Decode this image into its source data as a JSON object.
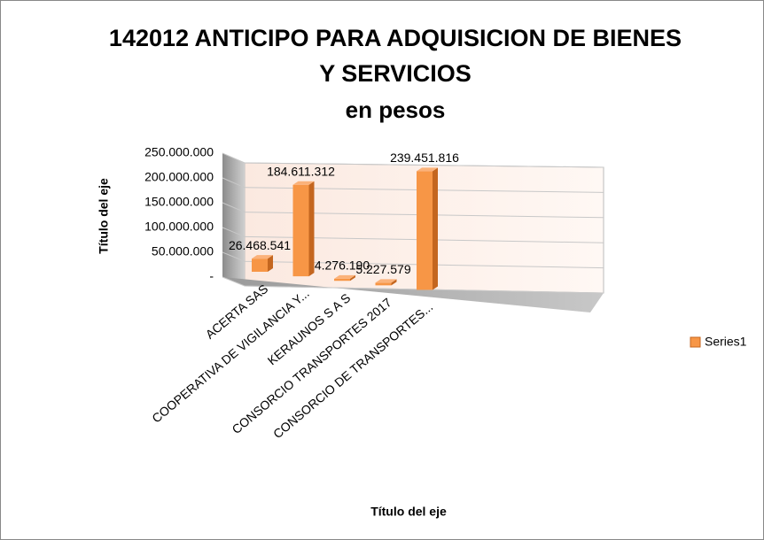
{
  "chart_data": {
    "type": "bar3d",
    "title": "142012 ANTICIPO PARA ADQUISICION DE BIENES Y SERVICIOS",
    "subtitle": "en pesos",
    "y_axis_label": "Título del eje",
    "x_axis_label": "Título del eje",
    "categories": [
      "ACERTA SAS",
      "COOPERATIVA DE VIGILANCIA Y...",
      "KERAUNOS S A S",
      "CONSORCIO TRANSPORTES 2017",
      "CONSORCIO DE TRANSPORTES..."
    ],
    "series": [
      {
        "name": "Series1",
        "color": "#f79646",
        "values": [
          26468541,
          184611312,
          4276190,
          5227579,
          239451816
        ],
        "value_labels": [
          "26.468.541",
          "184.611.312",
          "4.276.190",
          "5.227.579",
          "239.451.816"
        ]
      }
    ],
    "ylim": [
      0,
      250000000
    ],
    "yticks": [
      {
        "value": 0,
        "label": "-"
      },
      {
        "value": 50000000,
        "label": "50.000.000"
      },
      {
        "value": 100000000,
        "label": "100.000.000"
      },
      {
        "value": 150000000,
        "label": "150.000.000"
      },
      {
        "value": 200000000,
        "label": "200.000.000"
      },
      {
        "value": 250000000,
        "label": "250.000.000"
      }
    ],
    "grid": true,
    "legend": "right"
  }
}
